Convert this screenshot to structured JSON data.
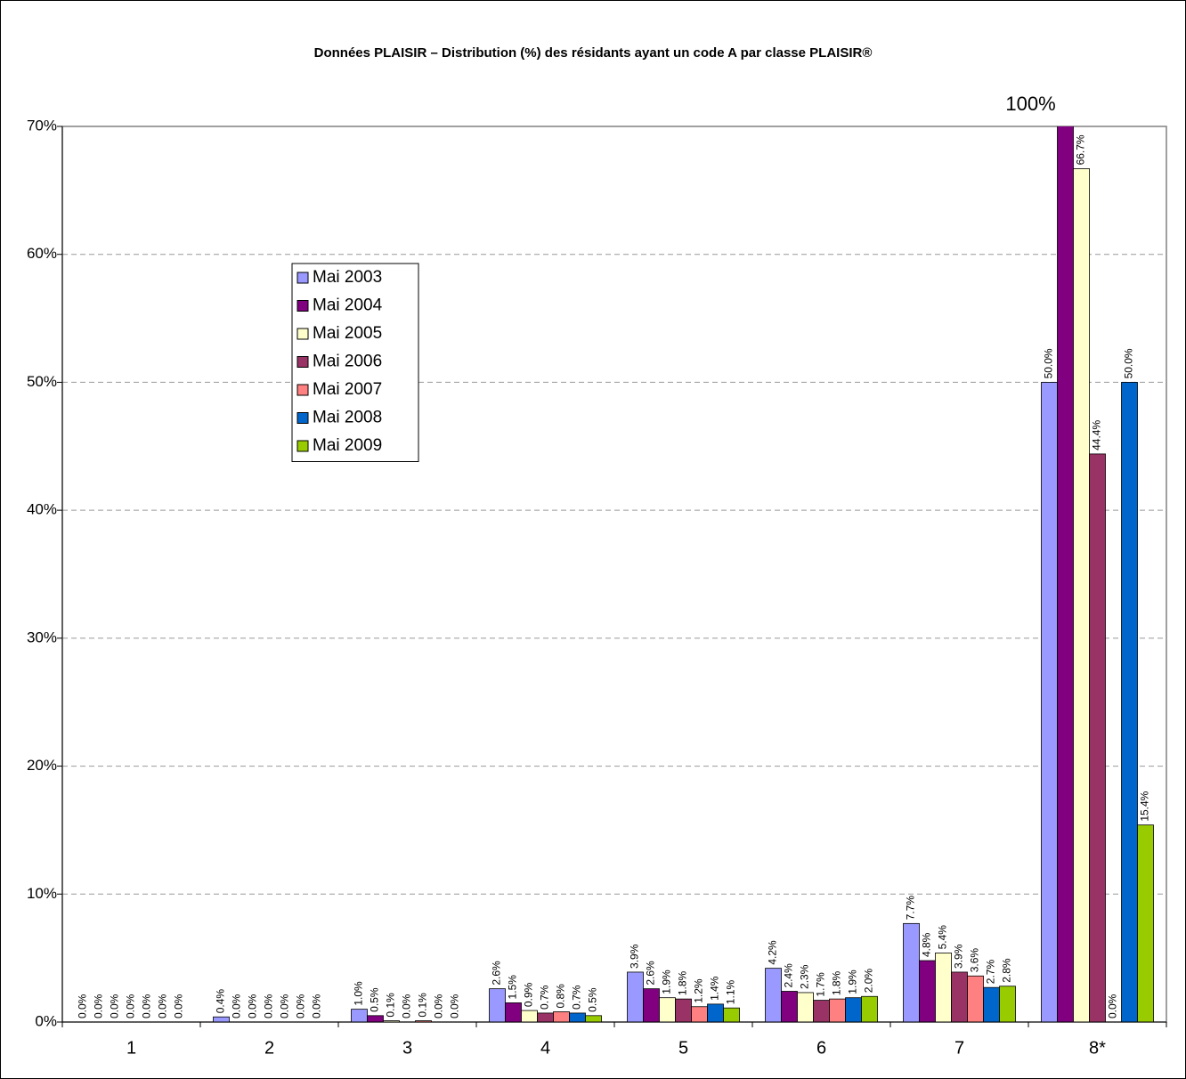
{
  "chart_data": {
    "type": "bar",
    "title": "Données PLAISIR – Distribution (%) des résidants ayant un code A par classe PLAISIR®",
    "categories": [
      "1",
      "2",
      "3",
      "4",
      "5",
      "6",
      "7",
      "8*"
    ],
    "series": [
      {
        "name": "Mai 2003",
        "color": "#9999ff",
        "values": [
          0.0,
          0.4,
          1.0,
          2.6,
          3.9,
          4.2,
          7.7,
          50.0
        ],
        "value_labels": [
          "0.0%",
          "0.4%",
          "1.0%",
          "2.6%",
          "3.9%",
          "4.2%",
          "7.7%",
          "50.0%"
        ]
      },
      {
        "name": "Mai 2004",
        "color": "#800080",
        "values": [
          0.0,
          0.0,
          0.5,
          1.5,
          2.6,
          2.4,
          4.8,
          100
        ],
        "value_labels": [
          "0.0%",
          "0.0%",
          "0.5%",
          "1.5%",
          "2.6%",
          "2.4%",
          "4.8%",
          "100%"
        ]
      },
      {
        "name": "Mai 2005",
        "color": "#ffffcc",
        "values": [
          0.0,
          0.0,
          0.1,
          0.9,
          1.9,
          2.3,
          5.4,
          66.7
        ],
        "value_labels": [
          "0.0%",
          "0.0%",
          "0.1%",
          "0.9%",
          "1.9%",
          "2.3%",
          "5.4%",
          "66.7%"
        ]
      },
      {
        "name": "Mai 2006",
        "color": "#993366",
        "values": [
          0.0,
          0.0,
          0.0,
          0.7,
          1.8,
          1.7,
          3.9,
          44.4
        ],
        "value_labels": [
          "0.0%",
          "0.0%",
          "0.0%",
          "0.7%",
          "1.8%",
          "1.7%",
          "3.9%",
          "44.4%"
        ]
      },
      {
        "name": "Mai 2007",
        "color": "#ff8080",
        "values": [
          0.0,
          0.0,
          0.1,
          0.8,
          1.2,
          1.8,
          3.6,
          0.0
        ],
        "value_labels": [
          "0.0%",
          "0.0%",
          "0.1%",
          "0.8%",
          "1.2%",
          "1.8%",
          "3.6%",
          "0.0%"
        ]
      },
      {
        "name": "Mai 2008",
        "color": "#0066cc",
        "values": [
          0.0,
          0.0,
          0.0,
          0.7,
          1.4,
          1.9,
          2.7,
          50.0
        ],
        "value_labels": [
          "0.0%",
          "0.0%",
          "0.0%",
          "0.7%",
          "1.4%",
          "1.9%",
          "2.7%",
          "50.0%"
        ]
      },
      {
        "name": "Mai 2009",
        "color": "#99cc00",
        "values": [
          0.0,
          0.0,
          0.0,
          0.5,
          1.1,
          2.0,
          2.8,
          15.4
        ],
        "value_labels": [
          "0.0%",
          "0.0%",
          "0.0%",
          "0.5%",
          "1.1%",
          "2.0%",
          "2.8%",
          "15.4%"
        ]
      }
    ],
    "ylim": [
      0,
      70
    ],
    "yticks": [
      {
        "value": 0,
        "label": "0%"
      },
      {
        "value": 10,
        "label": "10%"
      },
      {
        "value": 20,
        "label": "20%"
      },
      {
        "value": 30,
        "label": "30%"
      },
      {
        "value": 40,
        "label": "40%"
      },
      {
        "value": 50,
        "label": "50%"
      },
      {
        "value": 60,
        "label": "60%"
      },
      {
        "value": 70,
        "label": "70%"
      }
    ],
    "grid": true
  }
}
